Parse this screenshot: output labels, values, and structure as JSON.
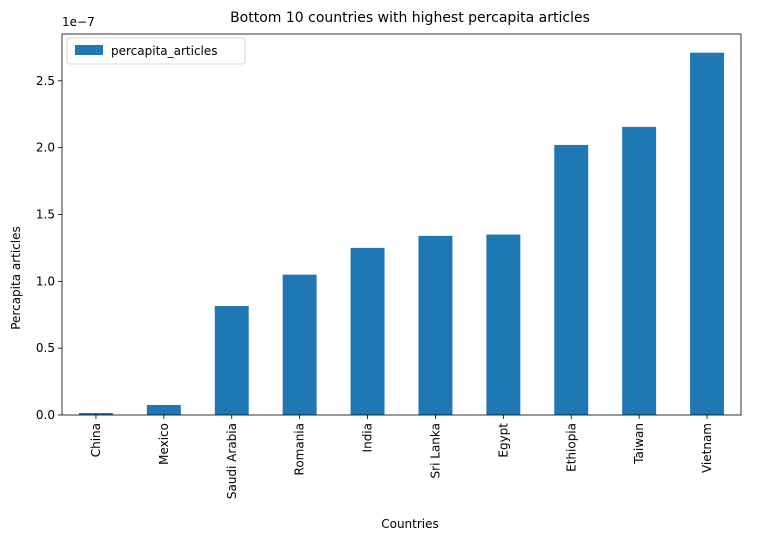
{
  "chart_data": {
    "type": "bar",
    "title": "Bottom 10 countries with highest percapita articles",
    "xlabel": "Countries",
    "ylabel": "Percapita articles",
    "offset_label": "1e−7",
    "categories": [
      "China",
      "Mexico",
      "Saudi Arabia",
      "Romania",
      "India",
      "Sri Lanka",
      "Egypt",
      "Ethiopia",
      "Taiwan",
      "Vietnam"
    ],
    "series": [
      {
        "name": "percapita_articles",
        "values": [
          0.015,
          0.075,
          0.815,
          1.05,
          1.25,
          1.34,
          1.35,
          2.02,
          2.155,
          2.71
        ]
      }
    ],
    "ylim": [
      0,
      2.85
    ],
    "yticks": [
      0.0,
      0.5,
      1.0,
      1.5,
      2.0,
      2.5
    ],
    "ytick_labels": [
      "0.0",
      "0.5",
      "1.0",
      "1.5",
      "2.0",
      "2.5"
    ],
    "grid": false,
    "legend_position": "top-left",
    "bar_color": "#1f77b4"
  }
}
